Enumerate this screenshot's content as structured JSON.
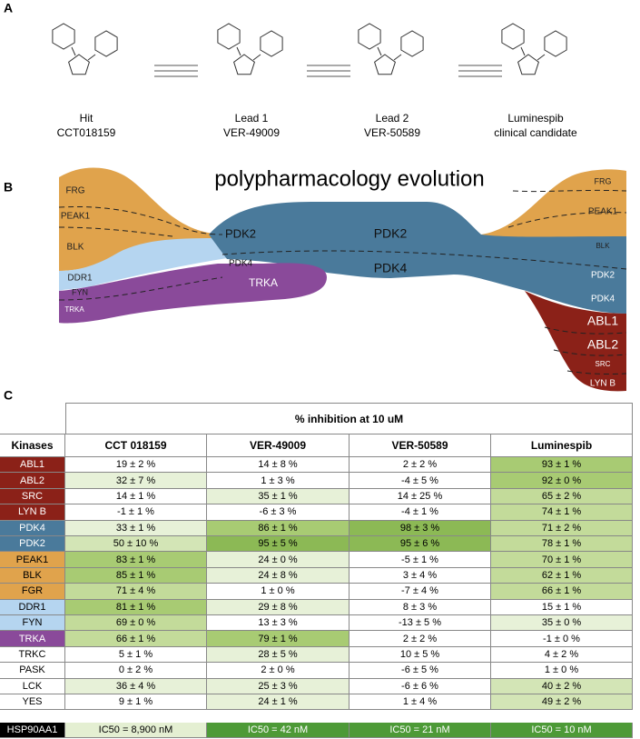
{
  "panel_a": {
    "label": "A",
    "compounds": [
      {
        "name": "Hit",
        "code": "CCT018159"
      },
      {
        "name": "Lead 1",
        "code": "VER-49009"
      },
      {
        "name": "Lead 2",
        "code": "VER-50589"
      },
      {
        "name": "Luminespib",
        "code": "clinical candidate"
      }
    ]
  },
  "panel_b": {
    "label": "B",
    "title": "polypharmacology evolution",
    "streams": [
      "FRG",
      "PEAK1",
      "BLK",
      "DDR1",
      "FYN",
      "TRKA",
      "PDK2",
      "PDK4",
      "TRKA",
      "PDK2",
      "PDK4",
      "FRG",
      "PEAK1",
      "BLK",
      "PDK2",
      "PDK4",
      "ABL1",
      "ABL2",
      "SRC",
      "LYN B"
    ]
  },
  "panel_c": {
    "label": "C",
    "header": "% inhibition at 10 uM",
    "columns": [
      "Kinases",
      "CCT 018159",
      "VER-49009",
      "VER-50589",
      "Luminespib"
    ],
    "rows": [
      {
        "kinase": "ABL1",
        "color": "#8b2118",
        "text_color": "#ffffff",
        "cells": [
          {
            "text": "19 ± 2 %",
            "color": "#ffffff"
          },
          {
            "text": "14 ± 8 %",
            "color": "#ffffff"
          },
          {
            "text": "2 ± 2 %",
            "color": "#ffffff"
          },
          {
            "text": "93 ± 1 %",
            "color": "#a8cb73"
          }
        ]
      },
      {
        "kinase": "ABL2",
        "color": "#8b2118",
        "text_color": "#ffffff",
        "cells": [
          {
            "text": "32 ± 7 %",
            "color": "#e7f1d8"
          },
          {
            "text": "1 ± 3 %",
            "color": "#ffffff"
          },
          {
            "text": "-4 ± 5 %",
            "color": "#ffffff"
          },
          {
            "text": "92 ± 0 %",
            "color": "#a8cb73"
          }
        ]
      },
      {
        "kinase": "SRC",
        "color": "#8b2118",
        "text_color": "#ffffff",
        "cells": [
          {
            "text": "14 ± 1 %",
            "color": "#ffffff"
          },
          {
            "text": "35 ± 1 %",
            "color": "#e7f1d8"
          },
          {
            "text": "14 ± 25 %",
            "color": "#ffffff"
          },
          {
            "text": "65 ± 2 %",
            "color": "#c3db9a"
          }
        ]
      },
      {
        "kinase": "LYN B",
        "color": "#8b2118",
        "text_color": "#ffffff",
        "cells": [
          {
            "text": "-1 ± 1 %",
            "color": "#ffffff"
          },
          {
            "text": "-6 ± 3 %",
            "color": "#ffffff"
          },
          {
            "text": "-4 ± 1 %",
            "color": "#ffffff"
          },
          {
            "text": "74 ± 1 %",
            "color": "#c3db9a"
          }
        ]
      },
      {
        "kinase": "PDK4",
        "color": "#4a7a9b",
        "text_color": "#ffffff",
        "cells": [
          {
            "text": "33 ± 1 %",
            "color": "#e7f1d8"
          },
          {
            "text": "86 ± 1 %",
            "color": "#a8cb73"
          },
          {
            "text": "98 ± 3 %",
            "color": "#8cb955"
          },
          {
            "text": "71 ± 2 %",
            "color": "#c3db9a"
          }
        ]
      },
      {
        "kinase": "PDK2",
        "color": "#4a7a9b",
        "text_color": "#ffffff",
        "cells": [
          {
            "text": "50 ± 10 %",
            "color": "#d3e5b6"
          },
          {
            "text": "95 ± 5 %",
            "color": "#8cb955"
          },
          {
            "text": "95 ± 6 %",
            "color": "#8cb955"
          },
          {
            "text": "78 ± 1 %",
            "color": "#c3db9a"
          }
        ]
      },
      {
        "kinase": "PEAK1",
        "color": "#e0a34c",
        "text_color": "#000000",
        "cells": [
          {
            "text": "83 ± 1 %",
            "color": "#a8cb73"
          },
          {
            "text": "24 ± 0 %",
            "color": "#e7f1d8"
          },
          {
            "text": "-5 ± 1 %",
            "color": "#ffffff"
          },
          {
            "text": "70 ± 1 %",
            "color": "#c3db9a"
          }
        ]
      },
      {
        "kinase": "BLK",
        "color": "#e0a34c",
        "text_color": "#000000",
        "cells": [
          {
            "text": "85 ± 1 %",
            "color": "#a8cb73"
          },
          {
            "text": "24 ± 8 %",
            "color": "#e7f1d8"
          },
          {
            "text": "3 ± 4 %",
            "color": "#ffffff"
          },
          {
            "text": "62 ± 1 %",
            "color": "#c3db9a"
          }
        ]
      },
      {
        "kinase": "FGR",
        "color": "#e0a34c",
        "text_color": "#000000",
        "cells": [
          {
            "text": "71 ± 4 %",
            "color": "#c3db9a"
          },
          {
            "text": "1 ± 0 %",
            "color": "#ffffff"
          },
          {
            "text": "-7 ± 4 %",
            "color": "#ffffff"
          },
          {
            "text": "66 ± 1 %",
            "color": "#c3db9a"
          }
        ]
      },
      {
        "kinase": "DDR1",
        "color": "#b5d5f0",
        "text_color": "#000000",
        "cells": [
          {
            "text": "81 ± 1 %",
            "color": "#a8cb73"
          },
          {
            "text": "29 ± 8 %",
            "color": "#e7f1d8"
          },
          {
            "text": "8 ± 3 %",
            "color": "#ffffff"
          },
          {
            "text": "15 ± 1 %",
            "color": "#ffffff"
          }
        ]
      },
      {
        "kinase": "FYN",
        "color": "#b5d5f0",
        "text_color": "#000000",
        "cells": [
          {
            "text": "69 ± 0 %",
            "color": "#c3db9a"
          },
          {
            "text": "13 ± 3 %",
            "color": "#ffffff"
          },
          {
            "text": "-13 ± 5 %",
            "color": "#ffffff"
          },
          {
            "text": "35 ± 0 %",
            "color": "#e7f1d8"
          }
        ]
      },
      {
        "kinase": "TRKA",
        "color": "#8a4a9a",
        "text_color": "#ffffff",
        "cells": [
          {
            "text": "66 ± 1 %",
            "color": "#c3db9a"
          },
          {
            "text": "79 ± 1 %",
            "color": "#a8cb73"
          },
          {
            "text": "2 ± 2 %",
            "color": "#ffffff"
          },
          {
            "text": "-1 ± 0 %",
            "color": "#ffffff"
          }
        ]
      },
      {
        "kinase": "TRKC",
        "color": "#ffffff",
        "text_color": "#000000",
        "cells": [
          {
            "text": "5 ± 1 %",
            "color": "#ffffff"
          },
          {
            "text": "28 ± 5 %",
            "color": "#e7f1d8"
          },
          {
            "text": "10 ± 5 %",
            "color": "#ffffff"
          },
          {
            "text": "4 ± 2 %",
            "color": "#ffffff"
          }
        ]
      },
      {
        "kinase": "PASK",
        "color": "#ffffff",
        "text_color": "#000000",
        "cells": [
          {
            "text": "0 ± 2 %",
            "color": "#ffffff"
          },
          {
            "text": "2 ± 0 %",
            "color": "#ffffff"
          },
          {
            "text": "-6 ± 5 %",
            "color": "#ffffff"
          },
          {
            "text": "1 ± 0 %",
            "color": "#ffffff"
          }
        ]
      },
      {
        "kinase": "LCK",
        "color": "#ffffff",
        "text_color": "#000000",
        "cells": [
          {
            "text": "36 ± 4 %",
            "color": "#e7f1d8"
          },
          {
            "text": "25 ± 3 %",
            "color": "#e7f1d8"
          },
          {
            "text": "-6 ± 6 %",
            "color": "#ffffff"
          },
          {
            "text": "40 ± 2 %",
            "color": "#d3e5b6"
          }
        ]
      },
      {
        "kinase": "YES",
        "color": "#ffffff",
        "text_color": "#000000",
        "cells": [
          {
            "text": "9 ± 1 %",
            "color": "#ffffff"
          },
          {
            "text": "24 ± 1 %",
            "color": "#e7f1d8"
          },
          {
            "text": "1 ± 4 %",
            "color": "#ffffff"
          },
          {
            "text": "49 ± 2 %",
            "color": "#d3e5b6"
          }
        ]
      }
    ],
    "footer": {
      "kinase": "HSP90AA1",
      "color": "#000000",
      "text_color": "#ffffff",
      "cells": [
        {
          "text": "IC50 = 8,900 nM",
          "color": "#e4efd2",
          "text_color": "#000000"
        },
        {
          "text": "IC50 = 42 nM",
          "color": "#4d9a37",
          "text_color": "#ffffff"
        },
        {
          "text": "IC50 = 21 nM",
          "color": "#4d9a37",
          "text_color": "#ffffff"
        },
        {
          "text": "IC50 = 10 nM",
          "color": "#4d9a37",
          "text_color": "#ffffff"
        }
      ]
    }
  }
}
